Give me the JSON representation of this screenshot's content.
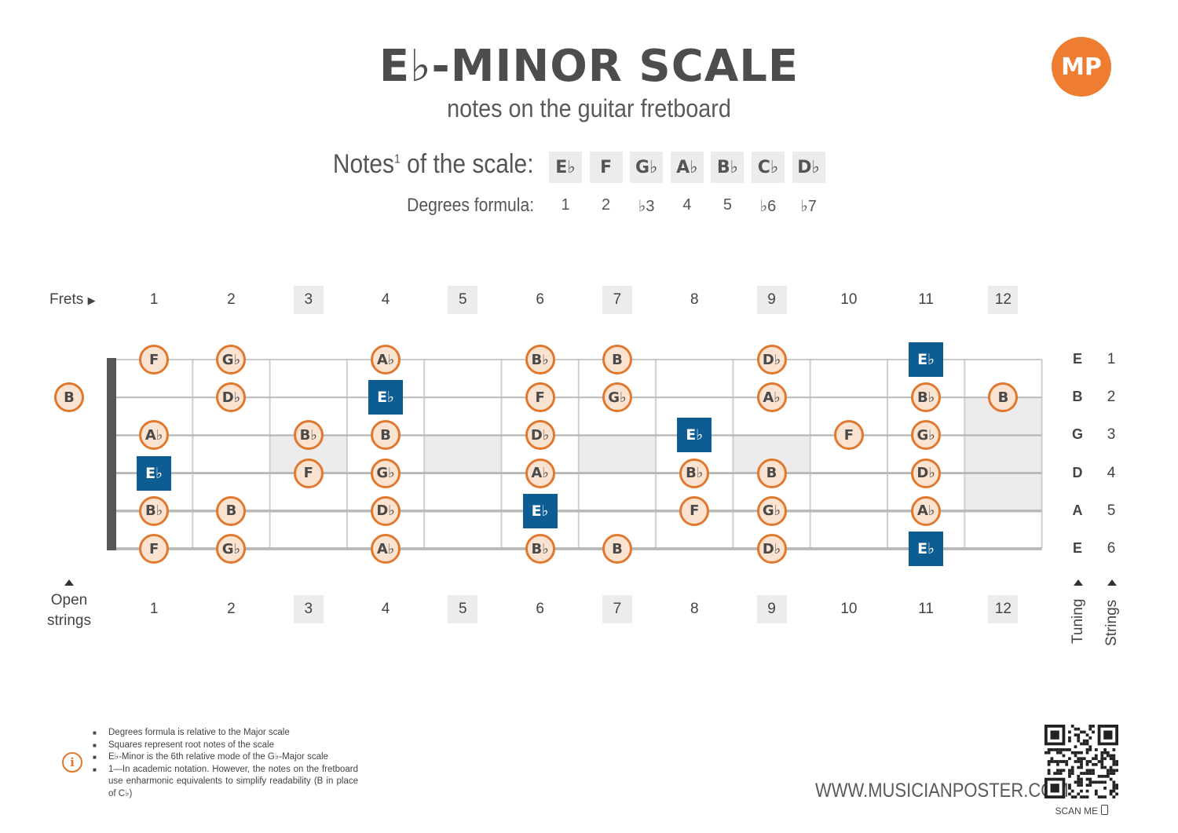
{
  "header": {
    "title": "E♭-MINOR SCALE",
    "subtitle": "notes on the guitar fretboard",
    "logo_text": "MP"
  },
  "scale": {
    "notes_label": "Notes",
    "notes_label_sup": "1",
    "notes_label_suffix": " of the scale:",
    "degrees_label": "Degrees formula:",
    "notes": [
      "E♭",
      "F",
      "G♭",
      "A♭",
      "B♭",
      "C♭",
      "D♭"
    ],
    "degrees": [
      "1",
      "2",
      "♭3",
      "4",
      "5",
      "♭6",
      "♭7"
    ]
  },
  "fretboard": {
    "frets_label": "Frets",
    "open_strings_label_1": "Open",
    "open_strings_label_2": "strings",
    "tuning_label": "Tuning",
    "strings_label": "Strings",
    "fret_numbers": [
      "1",
      "2",
      "3",
      "4",
      "5",
      "6",
      "7",
      "8",
      "9",
      "10",
      "11",
      "12"
    ],
    "shaded_frets": [
      3,
      5,
      7,
      9,
      12
    ],
    "strings": [
      {
        "tuning": "E",
        "number": "1"
      },
      {
        "tuning": "B",
        "number": "2"
      },
      {
        "tuning": "G",
        "number": "3"
      },
      {
        "tuning": "D",
        "number": "4"
      },
      {
        "tuning": "A",
        "number": "5"
      },
      {
        "tuning": "E",
        "number": "6"
      }
    ],
    "notes": [
      {
        "string": 1,
        "fret": 1,
        "note": "F",
        "root": false
      },
      {
        "string": 1,
        "fret": 2,
        "note": "G♭",
        "root": false
      },
      {
        "string": 1,
        "fret": 4,
        "note": "A♭",
        "root": false
      },
      {
        "string": 1,
        "fret": 6,
        "note": "B♭",
        "root": false
      },
      {
        "string": 1,
        "fret": 7,
        "note": "B",
        "root": false
      },
      {
        "string": 1,
        "fret": 9,
        "note": "D♭",
        "root": false
      },
      {
        "string": 1,
        "fret": 11,
        "note": "E♭",
        "root": true
      },
      {
        "string": 2,
        "fret": 0,
        "note": "B",
        "root": false
      },
      {
        "string": 2,
        "fret": 2,
        "note": "D♭",
        "root": false
      },
      {
        "string": 2,
        "fret": 4,
        "note": "E♭",
        "root": true
      },
      {
        "string": 2,
        "fret": 6,
        "note": "F",
        "root": false
      },
      {
        "string": 2,
        "fret": 7,
        "note": "G♭",
        "root": false
      },
      {
        "string": 2,
        "fret": 9,
        "note": "A♭",
        "root": false
      },
      {
        "string": 2,
        "fret": 11,
        "note": "B♭",
        "root": false
      },
      {
        "string": 2,
        "fret": 12,
        "note": "B",
        "root": false
      },
      {
        "string": 3,
        "fret": 1,
        "note": "A♭",
        "root": false
      },
      {
        "string": 3,
        "fret": 3,
        "note": "B♭",
        "root": false
      },
      {
        "string": 3,
        "fret": 4,
        "note": "B",
        "root": false
      },
      {
        "string": 3,
        "fret": 6,
        "note": "D♭",
        "root": false
      },
      {
        "string": 3,
        "fret": 8,
        "note": "E♭",
        "root": true
      },
      {
        "string": 3,
        "fret": 10,
        "note": "F",
        "root": false
      },
      {
        "string": 3,
        "fret": 11,
        "note": "G♭",
        "root": false
      },
      {
        "string": 4,
        "fret": 1,
        "note": "E♭",
        "root": true
      },
      {
        "string": 4,
        "fret": 3,
        "note": "F",
        "root": false
      },
      {
        "string": 4,
        "fret": 4,
        "note": "G♭",
        "root": false
      },
      {
        "string": 4,
        "fret": 6,
        "note": "A♭",
        "root": false
      },
      {
        "string": 4,
        "fret": 8,
        "note": "B♭",
        "root": false
      },
      {
        "string": 4,
        "fret": 9,
        "note": "B",
        "root": false
      },
      {
        "string": 4,
        "fret": 11,
        "note": "D♭",
        "root": false
      },
      {
        "string": 5,
        "fret": 1,
        "note": "B♭",
        "root": false
      },
      {
        "string": 5,
        "fret": 2,
        "note": "B",
        "root": false
      },
      {
        "string": 5,
        "fret": 4,
        "note": "D♭",
        "root": false
      },
      {
        "string": 5,
        "fret": 6,
        "note": "E♭",
        "root": true
      },
      {
        "string": 5,
        "fret": 8,
        "note": "F",
        "root": false
      },
      {
        "string": 5,
        "fret": 9,
        "note": "G♭",
        "root": false
      },
      {
        "string": 5,
        "fret": 11,
        "note": "A♭",
        "root": false
      },
      {
        "string": 6,
        "fret": 1,
        "note": "F",
        "root": false
      },
      {
        "string": 6,
        "fret": 2,
        "note": "G♭",
        "root": false
      },
      {
        "string": 6,
        "fret": 4,
        "note": "A♭",
        "root": false
      },
      {
        "string": 6,
        "fret": 6,
        "note": "B♭",
        "root": false
      },
      {
        "string": 6,
        "fret": 7,
        "note": "B",
        "root": false
      },
      {
        "string": 6,
        "fret": 9,
        "note": "D♭",
        "root": false
      },
      {
        "string": 6,
        "fret": 11,
        "note": "E♭",
        "root": true
      }
    ]
  },
  "footnotes": [
    "Degrees formula is relative to the Major scale",
    "Squares represent root notes of the scale",
    "E♭-Minor is the 6th relative mode of the G♭-Major scale",
    "1—In academic notation. However, the notes on the fretboard use enharmonic equivalents to simplify readability (B in place of C♭)"
  ],
  "footer": {
    "website": "WWW.MUSICIANPOSTER.COM",
    "scan_label": "SCAN ME"
  },
  "colors": {
    "accent": "#e0782e",
    "note_fill": "#fbe3d1",
    "root_fill": "#0d5c92",
    "shade": "#ececec"
  }
}
